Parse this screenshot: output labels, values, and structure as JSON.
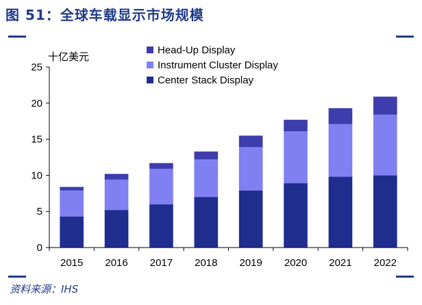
{
  "figure": {
    "title": "图 51：全球车载显示市场规模",
    "source": "资料来源：IHS"
  },
  "chart_data": {
    "type": "bar",
    "stacked": true,
    "unit_label": "十亿美元",
    "categories": [
      "2015",
      "2016",
      "2017",
      "2018",
      "2019",
      "2020",
      "2021",
      "2022"
    ],
    "series": [
      {
        "name": "Center Stack Display",
        "color": "#1f2d8f",
        "values": [
          4.3,
          5.2,
          6.0,
          7.0,
          7.9,
          8.9,
          9.8,
          10.0
        ]
      },
      {
        "name": "Instrument Cluster Display",
        "color": "#8080f2",
        "values": [
          3.6,
          4.2,
          4.9,
          5.2,
          6.0,
          7.2,
          7.3,
          8.4
        ]
      },
      {
        "name": "Head-Up Display",
        "color": "#3d3dad",
        "values": [
          0.5,
          0.8,
          0.8,
          1.1,
          1.6,
          1.6,
          2.2,
          2.5
        ]
      }
    ],
    "legend_order": [
      "Head-Up Display",
      "Instrument Cluster Display",
      "Center Stack Display"
    ],
    "legend_position": "top",
    "ylim": [
      0,
      25
    ],
    "yticks": [
      0,
      5,
      10,
      15,
      20,
      25
    ],
    "grid": false
  }
}
